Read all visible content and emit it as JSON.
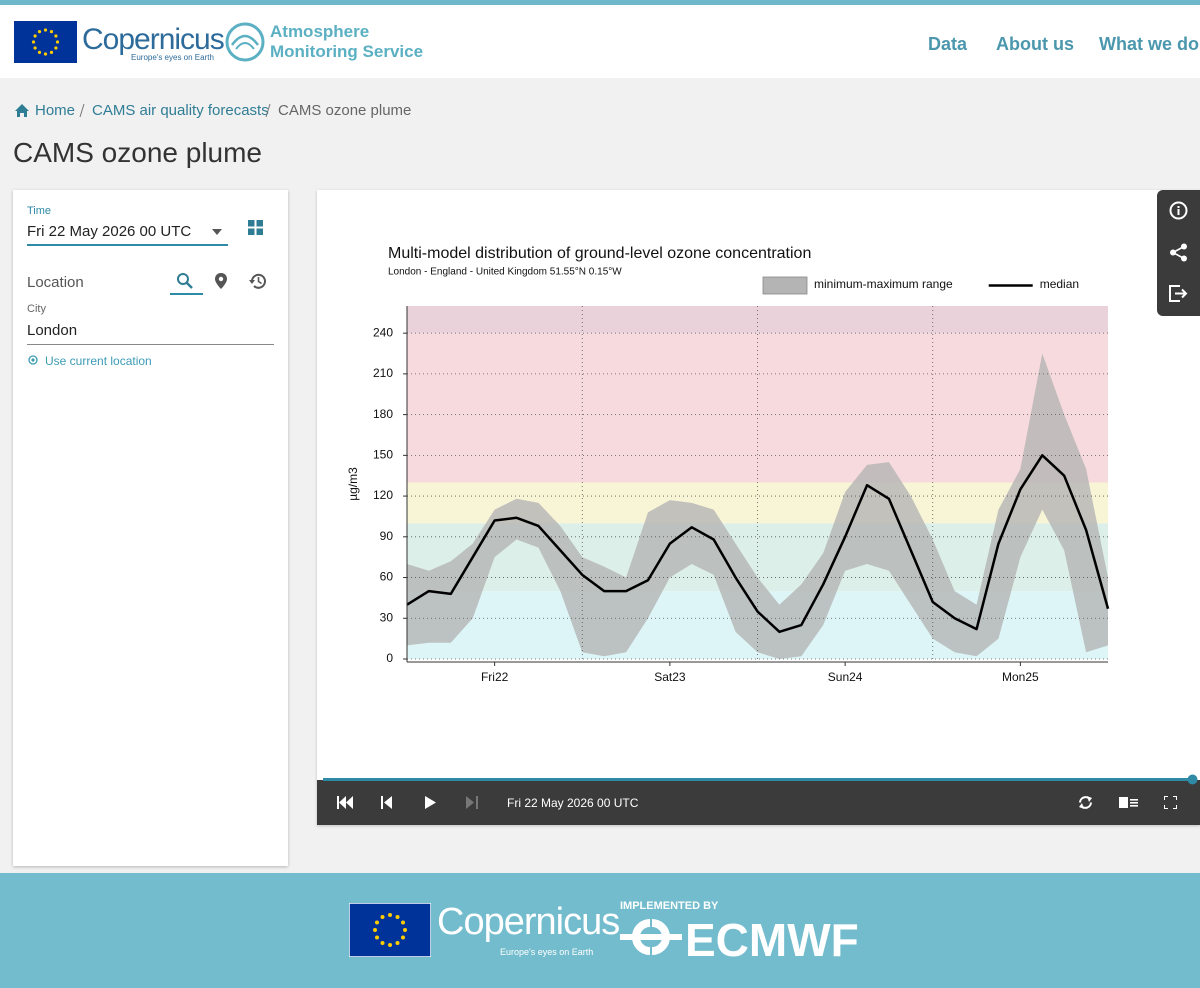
{
  "header": {
    "logo_text": "Copernicus",
    "logo_tagline": "Europe's eyes on Earth",
    "service": [
      "Atmosphere",
      "Monitoring Service"
    ],
    "nav": [
      "Data",
      "About us",
      "What we do"
    ]
  },
  "breadcrumb": [
    "Home",
    "CAMS air quality forecasts",
    "CAMS ozone plume"
  ],
  "page_title": "CAMS ozone plume",
  "form": {
    "time_label": "Time",
    "time_value": "Fri 22 May 2026 00 UTC",
    "location_label": "Location",
    "city_label": "City",
    "city_value": "London",
    "use_location": "Use current location"
  },
  "chart_data": {
    "type": "line",
    "title": "Multi-model distribution of ground-level ozone concentration",
    "subtitle": "London - England - United Kingdom 51.55°N 0.15°W",
    "y_label": "µg/m3",
    "x": [
      0,
      3,
      6,
      9,
      12,
      15,
      18,
      21,
      24,
      27,
      30,
      33,
      36,
      39,
      42,
      45,
      48,
      51,
      54,
      57,
      60,
      63,
      66,
      69,
      72,
      75,
      78,
      81,
      84,
      87,
      90,
      93,
      96
    ],
    "xlim": [
      0,
      96
    ],
    "xticks": [
      {
        "value": 12,
        "label": "Fri22"
      },
      {
        "value": 36,
        "label": "Sat23"
      },
      {
        "value": 60,
        "label": "Sun24"
      },
      {
        "value": 84,
        "label": "Mon25"
      }
    ],
    "x_gridlines": [
      24,
      48,
      72
    ],
    "ylim": [
      0,
      260
    ],
    "yticks": [
      0,
      30,
      60,
      90,
      120,
      150,
      180,
      210,
      240
    ],
    "grid": true,
    "bands": [
      {
        "from": 0,
        "to": 50,
        "color": "#ddf5f6"
      },
      {
        "from": 50,
        "to": 100,
        "color": "#ddefe9"
      },
      {
        "from": 100,
        "to": 130,
        "color": "#f8f5d6"
      },
      {
        "from": 130,
        "to": 240,
        "color": "#f7dadd"
      },
      {
        "from": 240,
        "to": 260,
        "color": "#e9d2d9"
      }
    ],
    "series": [
      {
        "name": "minimum-maximum range",
        "color": "#b4b4b4",
        "lower": [
          10,
          12,
          12,
          30,
          75,
          88,
          82,
          50,
          5,
          2,
          5,
          30,
          60,
          70,
          62,
          20,
          5,
          0,
          2,
          25,
          65,
          70,
          65,
          40,
          15,
          5,
          2,
          15,
          75,
          110,
          80,
          5,
          10
        ],
        "upper": [
          70,
          65,
          72,
          85,
          110,
          118,
          115,
          98,
          75,
          68,
          60,
          108,
          117,
          115,
          110,
          85,
          60,
          40,
          55,
          78,
          123,
          143,
          145,
          120,
          88,
          50,
          40,
          110,
          140,
          225,
          180,
          140,
          60
        ]
      },
      {
        "name": "median",
        "color": "#000000",
        "values": [
          40,
          50,
          48,
          75,
          102,
          104,
          98,
          80,
          62,
          50,
          50,
          58,
          85,
          97,
          88,
          60,
          35,
          20,
          25,
          55,
          90,
          128,
          118,
          80,
          42,
          30,
          22,
          85,
          125,
          150,
          135,
          95,
          37
        ]
      }
    ]
  },
  "player": {
    "time": "Fri 22 May 2026 00 UTC"
  },
  "footer": {
    "logo_text": "Copernicus",
    "logo_tagline": "Europe's eyes on Earth",
    "implemented_by": "IMPLEMENTED BY",
    "ecmwf": "ECMWF"
  }
}
